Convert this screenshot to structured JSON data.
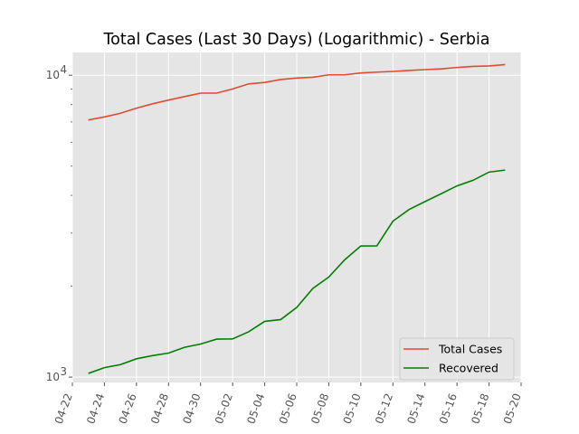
{
  "chart_data": {
    "type": "line",
    "title": "Total Cases (Last 30 Days) (Logarithmic) - Serbia",
    "xlabel": "",
    "ylabel": "",
    "y_scale": "log",
    "ylim": [
      960,
      11900
    ],
    "xlim": [
      "2020-04-22",
      "2020-05-20"
    ],
    "grid": true,
    "legend_position": "lower-right",
    "x_tick_labels": [
      "04-22",
      "04-24",
      "04-26",
      "04-28",
      "04-30",
      "05-02",
      "05-04",
      "05-06",
      "05-08",
      "05-10",
      "05-12",
      "05-14",
      "05-16",
      "05-18",
      "05-20"
    ],
    "y_tick_labels": [
      {
        "value": 1000,
        "base": "10",
        "exp": "3"
      },
      {
        "value": 10000,
        "base": "10",
        "exp": "4"
      }
    ],
    "x": [
      "2020-04-23",
      "2020-04-24",
      "2020-04-25",
      "2020-04-26",
      "2020-04-27",
      "2020-04-28",
      "2020-04-29",
      "2020-04-30",
      "2020-05-01",
      "2020-05-02",
      "2020-05-03",
      "2020-05-04",
      "2020-05-05",
      "2020-05-06",
      "2020-05-07",
      "2020-05-08",
      "2020-05-09",
      "2020-05-10",
      "2020-05-11",
      "2020-05-12",
      "2020-05-13",
      "2020-05-14",
      "2020-05-15",
      "2020-05-16",
      "2020-05-17",
      "2020-05-18",
      "2020-05-19"
    ],
    "series": [
      {
        "name": "Total Cases",
        "color": "#e24a33",
        "values": [
          7111,
          7276,
          7483,
          7779,
          8042,
          8275,
          8497,
          8724,
          8724,
          9009,
          9362,
          9464,
          9677,
          9791,
          9848,
          10032,
          10032,
          10176,
          10243,
          10295,
          10374,
          10438,
          10496,
          10610,
          10699,
          10733,
          10848
        ]
      },
      {
        "name": "Recovered",
        "color": "#008000",
        "values": [
          1029,
          1075,
          1100,
          1150,
          1178,
          1201,
          1255,
          1287,
          1336,
          1338,
          1413,
          1530,
          1551,
          1701,
          1965,
          2146,
          2449,
          2719,
          2721,
          3285,
          3588,
          3814,
          4048,
          4300,
          4487,
          4777,
          4850
        ]
      }
    ]
  },
  "colors": {
    "plot_background": "#e5e5e5",
    "grid": "#ffffff",
    "total_cases": "#e24a33",
    "recovered": "#008000"
  }
}
